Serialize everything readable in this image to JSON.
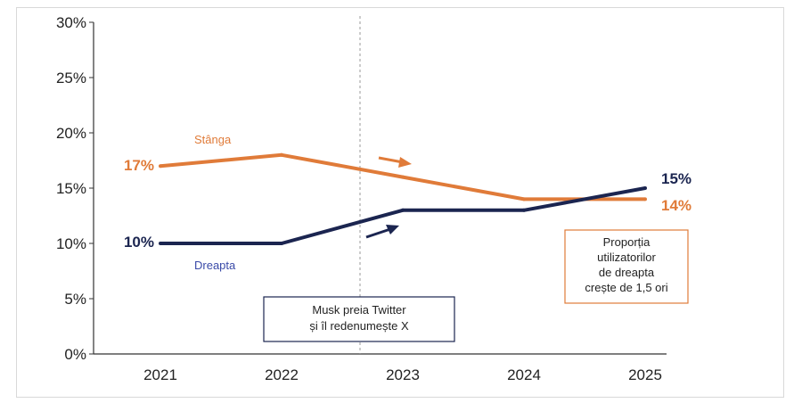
{
  "chart_data": {
    "type": "line",
    "categories": [
      "2021",
      "2022",
      "2023",
      "2024",
      "2025"
    ],
    "y_ticks": [
      "0%",
      "5%",
      "10%",
      "15%",
      "20%",
      "25%",
      "30%"
    ],
    "ylim": [
      0,
      30
    ],
    "grid": false,
    "series": [
      {
        "name": "Stânga",
        "values": [
          17,
          18,
          16,
          14,
          14
        ],
        "color": "#E07B39"
      },
      {
        "name": "Dreapta",
        "values": [
          10,
          10,
          13,
          13,
          15
        ],
        "color": "#1B2550"
      }
    ],
    "labels": {
      "stanga_start": "17%",
      "stanga_end": "14%",
      "dreapta_start": "10%",
      "dreapta_end": "15%"
    },
    "event": {
      "position_between": [
        "2022",
        "2023"
      ],
      "line1": "Musk preia Twitter",
      "line2": "și îl redenumește X"
    },
    "callout": {
      "line1": "Proporția",
      "line2": "utilizatorilor",
      "line3": "de dreapta",
      "line4": "crește de 1,5 ori",
      "color": "#E07B39"
    }
  }
}
